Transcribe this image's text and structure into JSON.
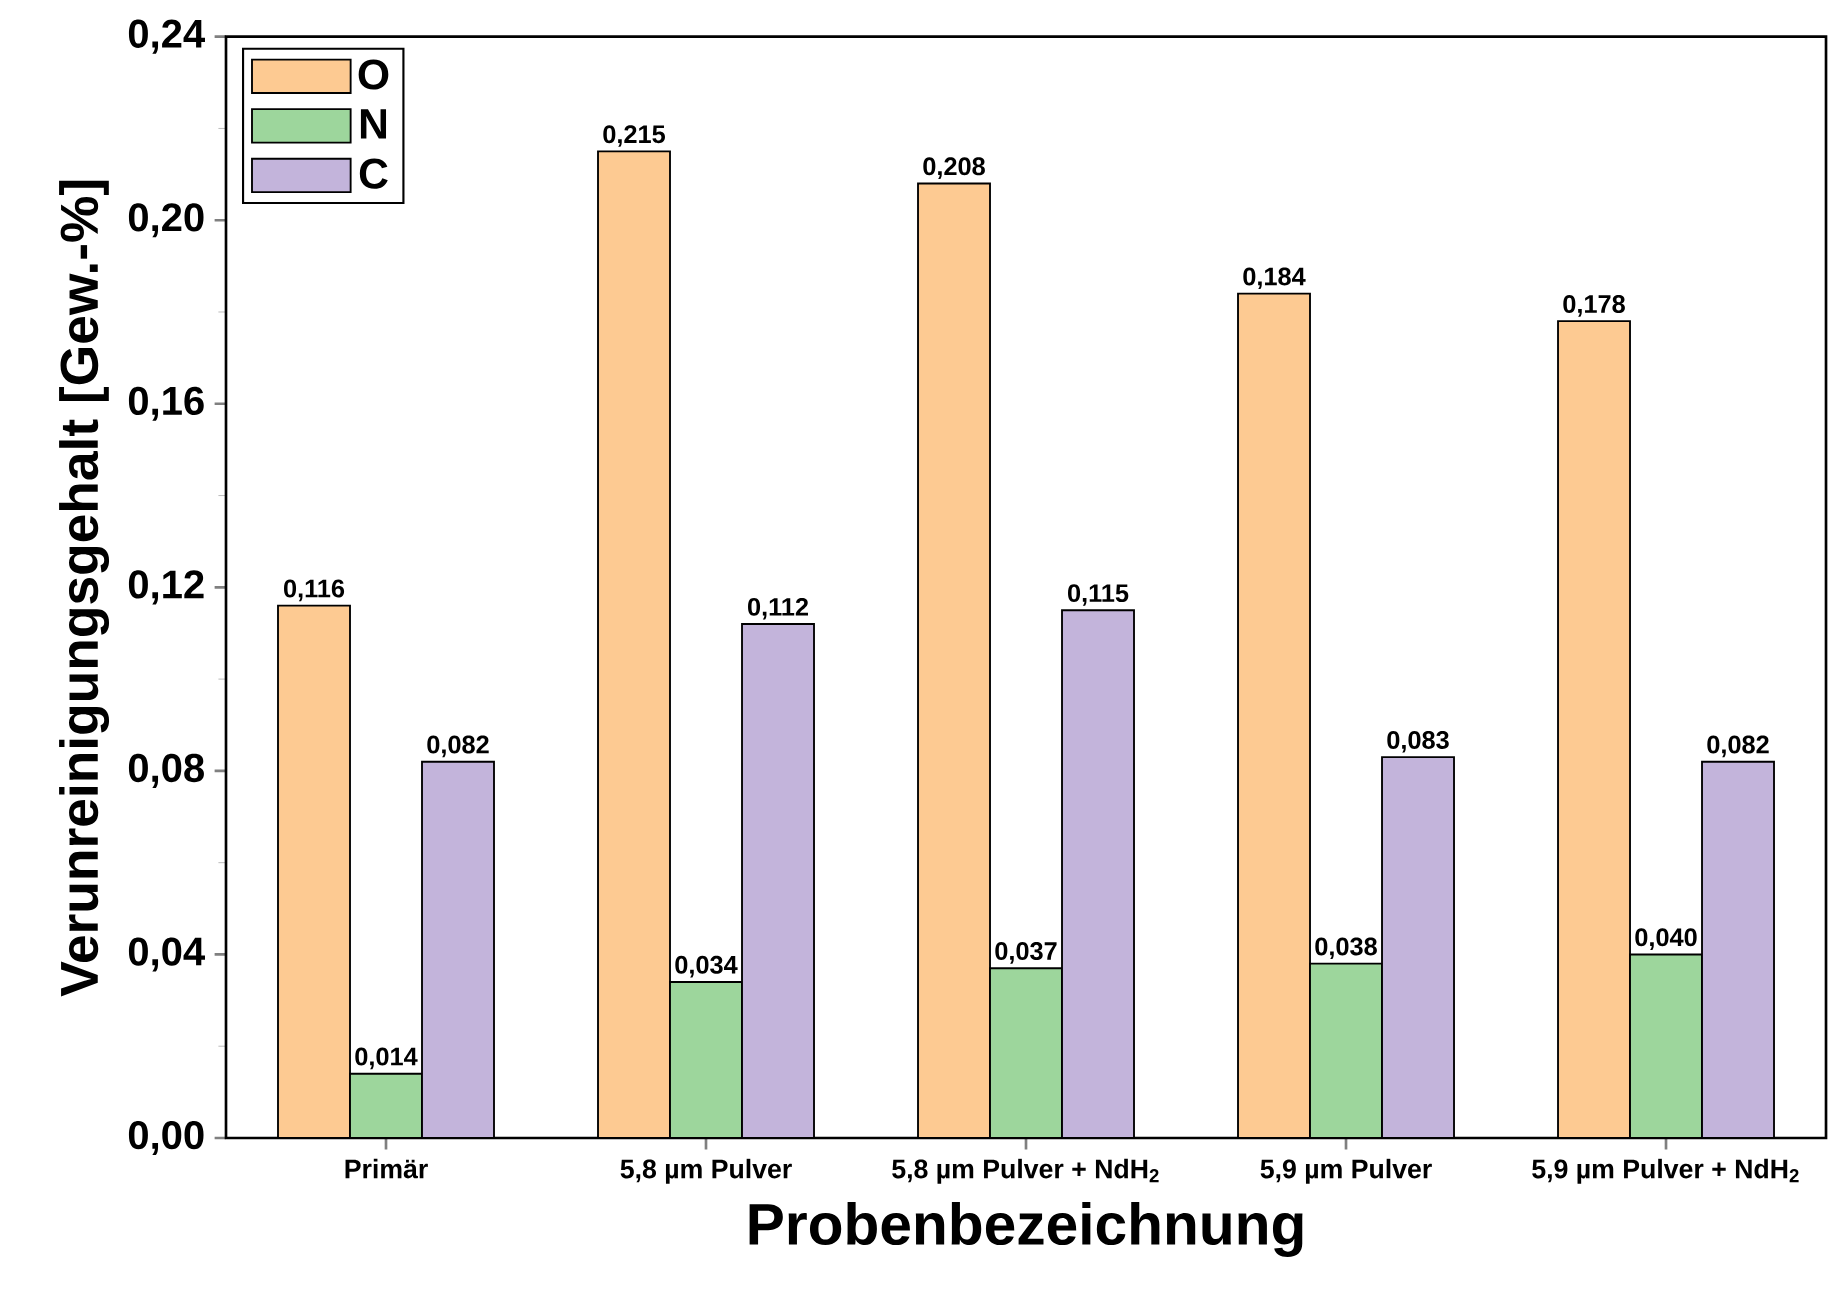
{
  "chart_data": {
    "type": "bar",
    "xlabel": "Probenbezeichnung",
    "ylabel": "Verunreinigungsgehalt [Gew.-%]",
    "categories": [
      "Primär",
      "5,8 µm Pulver",
      "5,8 µm Pulver + NdH$_{2}$",
      "5,9 µm Pulver",
      "5,9 µm Pulver + NdH$_{2}$"
    ],
    "series": [
      {
        "name": "O",
        "color": "#fdca92",
        "values": [
          0.116,
          0.215,
          0.208,
          0.184,
          0.178
        ],
        "value_labels": [
          "0,116",
          "0,215",
          "0,208",
          "0,184",
          "0,178"
        ]
      },
      {
        "name": "N",
        "color": "#9dd69c",
        "values": [
          0.014,
          0.034,
          0.037,
          0.038,
          0.04
        ],
        "value_labels": [
          "0,014",
          "0,034",
          "0,037",
          "0,038",
          "0,040"
        ]
      },
      {
        "name": "C",
        "color": "#c3b4db",
        "values": [
          0.082,
          0.112,
          0.115,
          0.083,
          0.082
        ],
        "value_labels": [
          "0,082",
          "0,112",
          "0,115",
          "0,083",
          "0,082"
        ]
      }
    ],
    "ylim": [
      0,
      0.24
    ],
    "yticks": [
      {
        "value": 0,
        "label": "0,00"
      },
      {
        "value": 0.04,
        "label": "0,04"
      },
      {
        "value": 0.08,
        "label": "0,08"
      },
      {
        "value": 0.12,
        "label": "0,12"
      },
      {
        "value": 0.16,
        "label": "0,16"
      },
      {
        "value": 0.2,
        "label": "0,20"
      },
      {
        "value": 0.24,
        "label": "0,24"
      }
    ],
    "legend": "top left"
  }
}
